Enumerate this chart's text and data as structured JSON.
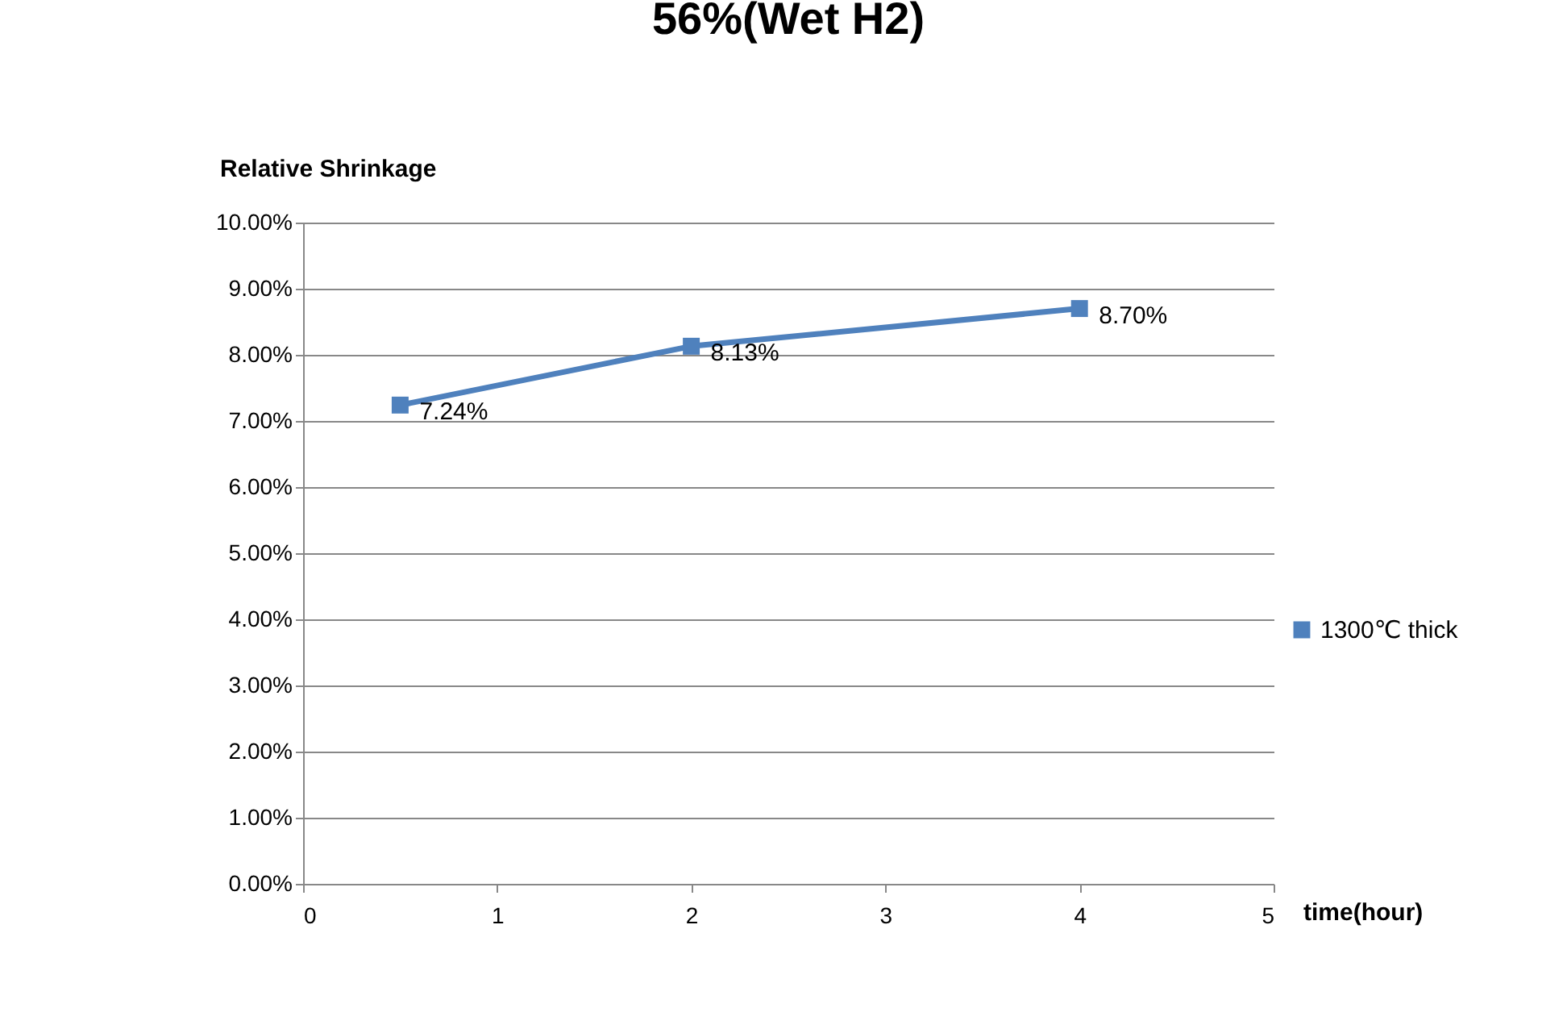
{
  "chart_data": {
    "type": "line",
    "title": "56%(Wet H2)",
    "xlabel": "time(hour)",
    "ylabel": "Relative Shrinkage",
    "x": [
      0.5,
      2,
      4
    ],
    "series": [
      {
        "name": "1300℃ thick",
        "color": "#4f81bd",
        "values": [
          7.24,
          8.13,
          8.7
        ],
        "value_labels": [
          "7.24%",
          "8.13%",
          "8.70%"
        ]
      }
    ],
    "xlim": [
      0,
      5
    ],
    "xticks": [
      0,
      1,
      2,
      3,
      4,
      5
    ],
    "ylim": [
      0,
      10
    ],
    "yticks": [
      {
        "value": 0,
        "label": "0.00%"
      },
      {
        "value": 1,
        "label": "1.00%"
      },
      {
        "value": 2,
        "label": "2.00%"
      },
      {
        "value": 3,
        "label": "3.00%"
      },
      {
        "value": 4,
        "label": "4.00%"
      },
      {
        "value": 5,
        "label": "5.00%"
      },
      {
        "value": 6,
        "label": "6.00%"
      },
      {
        "value": 7,
        "label": "7.00%"
      },
      {
        "value": 8,
        "label": "8.00%"
      },
      {
        "value": 9,
        "label": "9.00%"
      },
      {
        "value": 10,
        "label": "10.00%"
      }
    ],
    "grid": "y",
    "legend": "right",
    "marker": "square",
    "line_style": "solid"
  }
}
